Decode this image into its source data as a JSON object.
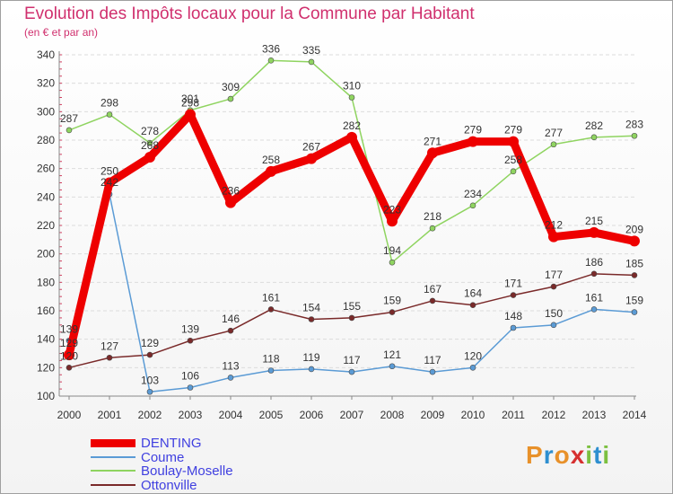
{
  "chart_data": {
    "type": "line",
    "title": "Evolution des Impôts locaux pour la Commune par Habitant",
    "subtitle": "(en € et par an)",
    "x": [
      "2000",
      "2001",
      "2002",
      "2003",
      "2004",
      "2005",
      "2006",
      "2007",
      "2008",
      "2009",
      "2010",
      "2011",
      "2012",
      "2013",
      "2014"
    ],
    "ylim": [
      100,
      340
    ],
    "yticks": [
      "100",
      "120",
      "140",
      "160",
      "180",
      "200",
      "220",
      "240",
      "260",
      "280",
      "300",
      "320",
      "340"
    ],
    "grid": "horizontal dashed",
    "series": [
      {
        "name": "DENTING",
        "color": "#ee0000",
        "values": [
          129,
          250,
          268,
          298,
          236,
          258,
          267,
          282,
          223,
          271,
          279,
          279,
          212,
          215,
          209
        ]
      },
      {
        "name": "Coume",
        "color": "#5b9bd5",
        "values": [
          139,
          242,
          103,
          106,
          113,
          118,
          119,
          117,
          121,
          117,
          120,
          148,
          150,
          161,
          159
        ]
      },
      {
        "name": "Boulay-Moselle",
        "color": "#8fd460",
        "values": [
          287,
          298,
          278,
          301,
          309,
          336,
          335,
          310,
          194,
          218,
          234,
          258,
          277,
          282,
          283
        ]
      },
      {
        "name": "Ottonville",
        "color": "#7a2a2a",
        "values": [
          120,
          127,
          129,
          139,
          146,
          161,
          154,
          155,
          159,
          167,
          164,
          171,
          177,
          186,
          185
        ]
      }
    ],
    "legend_position": "bottom-left"
  },
  "logo": {
    "text": "Proxiti",
    "letters": [
      "P",
      "r",
      "o",
      "x",
      "i",
      "t",
      "i"
    ],
    "colors": [
      "#e8912a",
      "#2e8fd0",
      "#e8912a",
      "#d63030",
      "#7cc040",
      "#2e8fd0",
      "#7cc040"
    ]
  }
}
